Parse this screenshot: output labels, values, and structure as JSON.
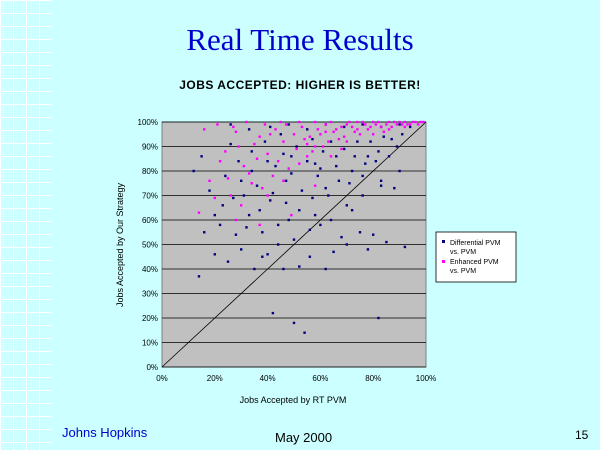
{
  "slide": {
    "title": "Real Time Results",
    "footer_left": "Johns Hopkins",
    "footer_center": "May 2000",
    "page_number": "15"
  },
  "colors": {
    "background": "#ccffff",
    "title": "#0000cc",
    "plot_bg": "#c0c0c0",
    "series_differential": "#000080",
    "series_enhanced": "#ff00ff"
  },
  "chart_data": {
    "type": "scatter",
    "title": "JOBS ACCEPTED: HIGHER IS BETTER!",
    "xlabel": "Jobs Accepted by RT PVM",
    "ylabel": "Jobs Accepted by Our Strategy",
    "xlim": [
      0,
      100
    ],
    "ylim": [
      0,
      100
    ],
    "x_ticks": [
      "0%",
      "20%",
      "40%",
      "60%",
      "80%",
      "100%"
    ],
    "y_ticks": [
      "0%",
      "10%",
      "20%",
      "30%",
      "40%",
      "50%",
      "60%",
      "70%",
      "80%",
      "90%",
      "100%"
    ],
    "grid": "horizontal",
    "legend_position": "right",
    "reference_line": "y = x",
    "series": [
      {
        "name": "Differential PVM vs. PVM",
        "color": "#000080",
        "points": [
          [
            14,
            37
          ],
          [
            16,
            55
          ],
          [
            20,
            46
          ],
          [
            22,
            58
          ],
          [
            25,
            43
          ],
          [
            28,
            54
          ],
          [
            30,
            48
          ],
          [
            33,
            62
          ],
          [
            35,
            40
          ],
          [
            38,
            55
          ],
          [
            40,
            46
          ],
          [
            42,
            22
          ],
          [
            44,
            58
          ],
          [
            46,
            40
          ],
          [
            48,
            60
          ],
          [
            50,
            18
          ],
          [
            52,
            41
          ],
          [
            54,
            14
          ],
          [
            56,
            45
          ],
          [
            58,
            62
          ],
          [
            60,
            58
          ],
          [
            62,
            40
          ],
          [
            65,
            47
          ],
          [
            68,
            53
          ],
          [
            70,
            50
          ],
          [
            72,
            64
          ],
          [
            75,
            55
          ],
          [
            78,
            48
          ],
          [
            80,
            54
          ],
          [
            82,
            20
          ],
          [
            85,
            51
          ],
          [
            88,
            73
          ],
          [
            90,
            80
          ],
          [
            92,
            49
          ],
          [
            12,
            80
          ],
          [
            15,
            86
          ],
          [
            18,
            72
          ],
          [
            24,
            78
          ],
          [
            26,
            91
          ],
          [
            29,
            84
          ],
          [
            31,
            70
          ],
          [
            34,
            88
          ],
          [
            36,
            74
          ],
          [
            39,
            92
          ],
          [
            41,
            68
          ],
          [
            43,
            82
          ],
          [
            45,
            95
          ],
          [
            47,
            76
          ],
          [
            49,
            86
          ],
          [
            51,
            90
          ],
          [
            53,
            72
          ],
          [
            55,
            84
          ],
          [
            57,
            93
          ],
          [
            59,
            78
          ],
          [
            61,
            88
          ],
          [
            63,
            70
          ],
          [
            66,
            82
          ],
          [
            69,
            89
          ],
          [
            71,
            75
          ],
          [
            73,
            86
          ],
          [
            76,
            78
          ],
          [
            79,
            92
          ],
          [
            81,
            84
          ],
          [
            83,
            76
          ],
          [
            86,
            86
          ],
          [
            89,
            90
          ],
          [
            91,
            95
          ],
          [
            94,
            98
          ],
          [
            20,
            62
          ],
          [
            23,
            66
          ],
          [
            27,
            69
          ],
          [
            32,
            57
          ],
          [
            37,
            64
          ],
          [
            42,
            71
          ],
          [
            47,
            67
          ],
          [
            52,
            64
          ],
          [
            57,
            69
          ],
          [
            62,
            73
          ],
          [
            67,
            76
          ],
          [
            72,
            80
          ],
          [
            77,
            83
          ],
          [
            82,
            88
          ],
          [
            38,
            45
          ],
          [
            44,
            50
          ],
          [
            50,
            52
          ],
          [
            56,
            56
          ],
          [
            64,
            60
          ],
          [
            70,
            66
          ],
          [
            76,
            70
          ],
          [
            83,
            74
          ],
          [
            26,
            99
          ],
          [
            33,
            97
          ],
          [
            41,
            98
          ],
          [
            48,
            99
          ],
          [
            55,
            97
          ],
          [
            62,
            99
          ],
          [
            69,
            98
          ],
          [
            76,
            99
          ],
          [
            83,
            98
          ],
          [
            90,
            99
          ],
          [
            34,
            80
          ],
          [
            46,
            87
          ],
          [
            58,
            83
          ],
          [
            64,
            92
          ],
          [
            74,
            92
          ],
          [
            84,
            94
          ],
          [
            30,
            76
          ],
          [
            40,
            84
          ],
          [
            49,
            79
          ],
          [
            60,
            81
          ],
          [
            66,
            86
          ],
          [
            78,
            86
          ],
          [
            87,
            93
          ]
        ]
      },
      {
        "name": "Enhanced PVM vs. PVM",
        "color": "#ff00ff",
        "points": [
          [
            14,
            63
          ],
          [
            18,
            76
          ],
          [
            22,
            84
          ],
          [
            26,
            70
          ],
          [
            29,
            90
          ],
          [
            33,
            79
          ],
          [
            37,
            94
          ],
          [
            40,
            87
          ],
          [
            43,
            97
          ],
          [
            46,
            92
          ],
          [
            50,
            95
          ],
          [
            53,
            98
          ],
          [
            56,
            94
          ],
          [
            59,
            97
          ],
          [
            62,
            99
          ],
          [
            65,
            96
          ],
          [
            68,
            98
          ],
          [
            71,
            100
          ],
          [
            74,
            97
          ],
          [
            77,
            99
          ],
          [
            80,
            100
          ],
          [
            83,
            98
          ],
          [
            86,
            100
          ],
          [
            89,
            99
          ],
          [
            92,
            100
          ],
          [
            95,
            100
          ],
          [
            98,
            100
          ],
          [
            24,
            88
          ],
          [
            28,
            96
          ],
          [
            31,
            82
          ],
          [
            35,
            91
          ],
          [
            38,
            73
          ],
          [
            41,
            95
          ],
          [
            44,
            84
          ],
          [
            47,
            99
          ],
          [
            51,
            89
          ],
          [
            54,
            93
          ],
          [
            57,
            88
          ],
          [
            60,
            95
          ],
          [
            63,
            92
          ],
          [
            66,
            97
          ],
          [
            69,
            94
          ],
          [
            72,
            98
          ],
          [
            75,
            95
          ],
          [
            78,
            97
          ],
          [
            81,
            99
          ],
          [
            84,
            96
          ],
          [
            87,
            98
          ],
          [
            90,
            100
          ],
          [
            93,
            99
          ],
          [
            20,
            69
          ],
          [
            25,
            77
          ],
          [
            30,
            66
          ],
          [
            36,
            85
          ],
          [
            42,
            78
          ],
          [
            48,
            81
          ],
          [
            55,
            86
          ],
          [
            61,
            90
          ],
          [
            67,
            93
          ],
          [
            73,
            96
          ],
          [
            79,
            98
          ],
          [
            85,
            99
          ],
          [
            91,
            99
          ],
          [
            96,
            100
          ],
          [
            16,
            97
          ],
          [
            21,
            99
          ],
          [
            27,
            98
          ],
          [
            32,
            100
          ],
          [
            39,
            99
          ],
          [
            45,
            100
          ],
          [
            52,
            100
          ],
          [
            58,
            100
          ],
          [
            64,
            100
          ],
          [
            70,
            99
          ],
          [
            76,
            100
          ],
          [
            82,
            100
          ],
          [
            88,
            100
          ],
          [
            94,
            99
          ],
          [
            99,
            100
          ],
          [
            34,
            75
          ],
          [
            40,
            70
          ],
          [
            46,
            76
          ],
          [
            52,
            83
          ],
          [
            58,
            90
          ],
          [
            64,
            86
          ],
          [
            70,
            92
          ],
          [
            58,
            74
          ],
          [
            49,
            62
          ],
          [
            37,
            58
          ],
          [
            28,
            60
          ],
          [
            55,
            91
          ],
          [
            62,
            96
          ],
          [
            68,
            89
          ],
          [
            74,
            100
          ],
          [
            80,
            95
          ],
          [
            86,
            97
          ],
          [
            92,
            98
          ],
          [
            97,
            99
          ]
        ]
      }
    ]
  }
}
